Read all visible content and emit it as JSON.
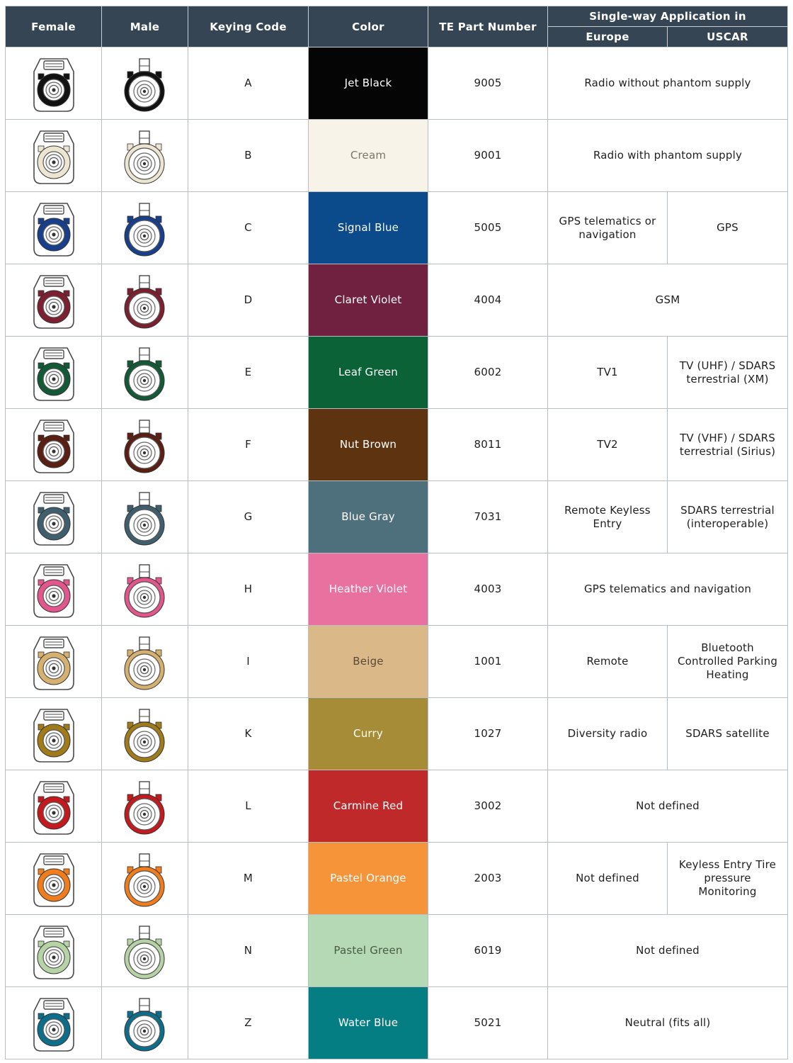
{
  "headers": {
    "female": "Female",
    "male": "Male",
    "keying_code": "Keying Code",
    "color": "Color",
    "part_number": "TE Part Number",
    "application": "Single-way Application in",
    "europe": "Europe",
    "uscar": "USCAR"
  },
  "rows": [
    {
      "code": "A",
      "color_name": "Jet Black",
      "hex": "#050505",
      "part": "9005",
      "europe": "Radio without phantom supply",
      "uscar": ""
    },
    {
      "code": "B",
      "color_name": "Cream",
      "hex": "#f7f3e8",
      "part": "9001",
      "europe": "Radio with phantom supply",
      "uscar": ""
    },
    {
      "code": "C",
      "color_name": "Signal Blue",
      "hex": "#0b4a8b",
      "part": "5005",
      "europe": "GPS telematics or navigation",
      "uscar": "GPS"
    },
    {
      "code": "D",
      "color_name": "Claret Violet",
      "hex": "#70213f",
      "part": "4004",
      "europe": "GSM",
      "uscar": ""
    },
    {
      "code": "E",
      "color_name": "Leaf Green",
      "hex": "#0a6236",
      "part": "6002",
      "europe": "TV1",
      "uscar": "TV (UHF) / SDARS terrestrial (XM)"
    },
    {
      "code": "F",
      "color_name": "Nut Brown",
      "hex": "#5e3410",
      "part": "8011",
      "europe": "TV2",
      "uscar": "TV (VHF) / SDARS terrestrial (Sirius)"
    },
    {
      "code": "G",
      "color_name": "Blue Gray",
      "hex": "#4e6f7c",
      "part": "7031",
      "europe": "Remote Keyless Entry",
      "uscar": "SDARS terrestrial (interoperable)"
    },
    {
      "code": "H",
      "color_name": "Heather Violet",
      "hex": "#e8719f",
      "part": "4003",
      "europe": "GPS telematics and navigation",
      "uscar": ""
    },
    {
      "code": "I",
      "color_name": "Beige",
      "hex": "#dbb887",
      "part": "1001",
      "europe": "Remote",
      "uscar": "Bluetooth Controlled Parking Heating"
    },
    {
      "code": "K",
      "color_name": "Curry",
      "hex": "#a68c36",
      "part": "1027",
      "europe": "Diversity radio",
      "uscar": "SDARS satellite"
    },
    {
      "code": "L",
      "color_name": "Carmine Red",
      "hex": "#c0292a",
      "part": "3002",
      "europe": "Not defined",
      "uscar": ""
    },
    {
      "code": "M",
      "color_name": "Pastel Orange",
      "hex": "#f6943a",
      "part": "2003",
      "europe": "Not defined",
      "uscar": "Keyless Entry Tire pressure Monitoring"
    },
    {
      "code": "N",
      "color_name": "Pastel Green",
      "hex": "#b5d9b5",
      "part": "6019",
      "europe": "Not defined",
      "uscar": ""
    },
    {
      "code": "Z",
      "color_name": "Water Blue",
      "hex": "#047e83",
      "part": "5021",
      "europe": "Neutral (fits all)",
      "uscar": ""
    }
  ],
  "connector_colors": {
    "A": "#111111",
    "B": "#ece5d1",
    "C": "#173f8c",
    "D": "#7c1f2f",
    "E": "#115a35",
    "F": "#5a1f12",
    "G": "#3f5f6e",
    "H": "#e2568c",
    "I": "#d6b06e",
    "K": "#a07b17",
    "L": "#c41a1d",
    "M": "#f07c1b",
    "N": "#b6d3a6",
    "Z": "#0d6e8c"
  },
  "icons": {
    "female": "female-connector-icon",
    "male": "male-connector-icon"
  }
}
